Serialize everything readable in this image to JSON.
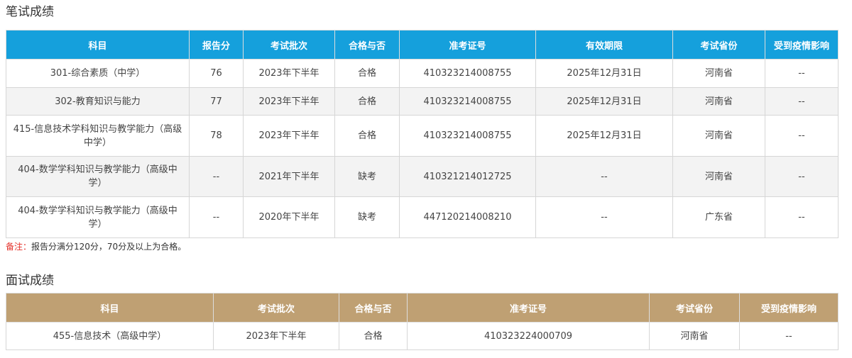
{
  "written": {
    "title": "笔试成绩",
    "headers": [
      "科目",
      "报告分",
      "考试批次",
      "合格与否",
      "准考证号",
      "有效期限",
      "考试省份",
      "受到疫情影响"
    ],
    "rows": [
      [
        "301-综合素质（中学）",
        "76",
        "2023年下半年",
        "合格",
        "410323214008755",
        "2025年12月31日",
        "河南省",
        "--"
      ],
      [
        "302-教育知识与能力",
        "77",
        "2023年下半年",
        "合格",
        "410323214008755",
        "2025年12月31日",
        "河南省",
        "--"
      ],
      [
        "415-信息技术学科知识与教学能力（高级中学）",
        "78",
        "2023年下半年",
        "合格",
        "410323214008755",
        "2025年12月31日",
        "河南省",
        "--"
      ],
      [
        "404-数学学科知识与教学能力（高级中学）",
        "--",
        "2021年下半年",
        "缺考",
        "410321214012725",
        "--",
        "河南省",
        "--"
      ],
      [
        "404-数学学科知识与教学能力（高级中学）",
        "--",
        "2020年下半年",
        "缺考",
        "447120214008210",
        "--",
        "广东省",
        "--"
      ]
    ],
    "note_label": "备注：",
    "note_text": "报告分满分120分，70分及以上为合格。"
  },
  "interview": {
    "title": "面试成绩",
    "headers": [
      "科目",
      "考试批次",
      "合格与否",
      "准考证号",
      "考试省份",
      "受到疫情影响"
    ],
    "rows": [
      [
        "455-信息技术（高级中学）",
        "2023年下半年",
        "合格",
        "410323224000709",
        "河南省",
        "--"
      ]
    ]
  },
  "colors": {
    "written_header": "#15a0dc",
    "interview_header": "#bfa073",
    "note_label": "#e4322b"
  }
}
